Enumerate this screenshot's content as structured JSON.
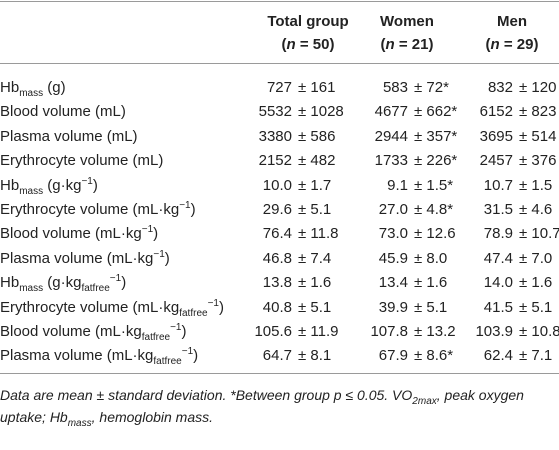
{
  "header": {
    "columns": [
      {
        "title": "Total group",
        "n": [
          {
            "text": "("
          },
          {
            "text": "n",
            "style": "italic"
          },
          {
            "text": " = 50)"
          }
        ]
      },
      {
        "title": "Women",
        "n": [
          {
            "text": "("
          },
          {
            "text": "n",
            "style": "italic"
          },
          {
            "text": " = 21)"
          }
        ]
      },
      {
        "title": "Men",
        "n": [
          {
            "text": "("
          },
          {
            "text": "n",
            "style": "italic"
          },
          {
            "text": " = 29)"
          }
        ]
      }
    ]
  },
  "table": {
    "rows": [
      {
        "label": [
          {
            "text": "Hb"
          },
          {
            "text": "mass",
            "style": "sub"
          },
          {
            "text": " (g)"
          }
        ],
        "cells": [
          [
            "727",
            "± 161"
          ],
          [
            "583",
            "± 72*"
          ],
          [
            "832",
            "± 120"
          ]
        ]
      },
      {
        "label": [
          {
            "text": "Blood volume (mL)"
          }
        ],
        "cells": [
          [
            "5532",
            "± 1028"
          ],
          [
            "4677",
            "± 662*"
          ],
          [
            "6152",
            "± 823"
          ]
        ]
      },
      {
        "label": [
          {
            "text": "Plasma volume (mL)"
          }
        ],
        "cells": [
          [
            "3380",
            "± 586"
          ],
          [
            "2944",
            "± 357*"
          ],
          [
            "3695",
            "± 514"
          ]
        ]
      },
      {
        "label": [
          {
            "text": "Erythrocyte volume (mL)"
          }
        ],
        "cells": [
          [
            "2152",
            "± 482"
          ],
          [
            "1733",
            "± 226*"
          ],
          [
            "2457",
            "± 376"
          ]
        ]
      },
      {
        "label": [
          {
            "text": "Hb"
          },
          {
            "text": "mass",
            "style": "sub"
          },
          {
            "text": " (g·kg"
          },
          {
            "text": "−1",
            "style": "sup"
          },
          {
            "text": ")"
          }
        ],
        "cells": [
          [
            "10.0",
            "± 1.7"
          ],
          [
            "9.1",
            "± 1.5*"
          ],
          [
            "10.7",
            "± 1.5"
          ]
        ]
      },
      {
        "label": [
          {
            "text": "Erythrocyte volume (mL·kg"
          },
          {
            "text": "−1",
            "style": "sup"
          },
          {
            "text": ")"
          }
        ],
        "cells": [
          [
            "29.6",
            "± 5.1"
          ],
          [
            "27.0",
            "± 4.8*"
          ],
          [
            "31.5",
            "± 4.6"
          ]
        ]
      },
      {
        "label": [
          {
            "text": "Blood volume (mL·kg"
          },
          {
            "text": "−1",
            "style": "sup"
          },
          {
            "text": ")"
          }
        ],
        "cells": [
          [
            "76.4",
            "± 11.8"
          ],
          [
            "73.0",
            "± 12.6"
          ],
          [
            "78.9",
            "± 10.7"
          ]
        ]
      },
      {
        "label": [
          {
            "text": "Plasma volume (mL·kg"
          },
          {
            "text": "−1",
            "style": "sup"
          },
          {
            "text": ")"
          }
        ],
        "cells": [
          [
            "46.8",
            "± 7.4"
          ],
          [
            "45.9",
            "± 8.0"
          ],
          [
            "47.4",
            "± 7.0"
          ]
        ]
      },
      {
        "label": [
          {
            "text": "Hb"
          },
          {
            "text": "mass",
            "style": "sub"
          },
          {
            "text": " (g·kg"
          },
          {
            "text": "fatfree",
            "style": "sub"
          },
          {
            "text": "−1",
            "style": "sup"
          },
          {
            "text": ")"
          }
        ],
        "cells": [
          [
            "13.8",
            "± 1.6"
          ],
          [
            "13.4",
            "± 1.6"
          ],
          [
            "14.0",
            "± 1.6"
          ]
        ]
      },
      {
        "label": [
          {
            "text": "Erythrocyte volume (mL·kg"
          },
          {
            "text": "fatfree",
            "style": "sub"
          },
          {
            "text": "−1",
            "style": "sup"
          },
          {
            "text": ")"
          }
        ],
        "cells": [
          [
            "40.8",
            "± 5.1"
          ],
          [
            "39.9",
            "± 5.1"
          ],
          [
            "41.5",
            "± 5.1"
          ]
        ]
      },
      {
        "label": [
          {
            "text": "Blood volume (mL·kg"
          },
          {
            "text": "fatfree",
            "style": "sub"
          },
          {
            "text": "−1",
            "style": "sup"
          },
          {
            "text": ")"
          }
        ],
        "cells": [
          [
            "105.6",
            "± 11.9"
          ],
          [
            "107.8",
            "± 13.2"
          ],
          [
            "103.9",
            "± 10.8"
          ]
        ]
      },
      {
        "label": [
          {
            "text": "Plasma volume (mL·kg"
          },
          {
            "text": "fatfree",
            "style": "sub"
          },
          {
            "text": "−1",
            "style": "sup"
          },
          {
            "text": ")"
          }
        ],
        "cells": [
          [
            "64.7",
            "± 8.1"
          ],
          [
            "67.9",
            "± 8.6*"
          ],
          [
            "62.4",
            "± 7.1"
          ]
        ]
      }
    ]
  },
  "footnote": [
    {
      "text": "Data are mean ± standard deviation. *Between group p ≤ 0.05. VO"
    },
    {
      "text": "2max",
      "style": "sub"
    },
    {
      "text": ", peak oxygen uptake; Hb"
    },
    {
      "text": "mass",
      "style": "sub"
    },
    {
      "text": ", hemoglobin mass."
    }
  ]
}
